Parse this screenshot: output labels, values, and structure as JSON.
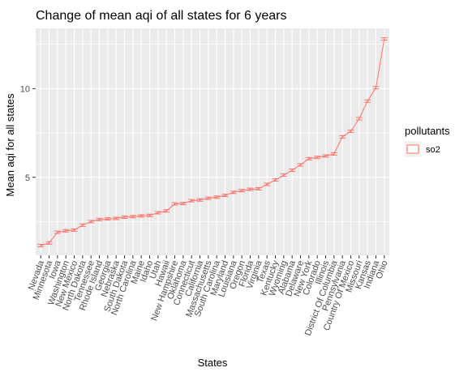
{
  "chart_data": {
    "type": "line",
    "title": "Change of mean aqi of all states for 6 years",
    "xlabel": "States",
    "ylabel": "Mean aqi for all states",
    "ylim": [
      0.6,
      13.4
    ],
    "yticks": [
      5,
      10
    ],
    "grid": true,
    "legend_placement": "right",
    "legend_title": "pollutants",
    "line_color": "#f8766d",
    "panel_color": "#ebebeb",
    "categories": [
      "Nevada",
      "Minnesota",
      "Iowa",
      "Washington",
      "New Mexico",
      "North Dakota",
      "Tennessee",
      "Rhode Island",
      "Georgia",
      "Nebraska",
      "South Dakota",
      "North Carolina",
      "Maine",
      "Idaho",
      "Utah",
      "Hawaii",
      "New Hampshire",
      "Oklahoma",
      "Connecticut",
      "California",
      "Massachusetts",
      "South Carolina",
      "Maryland",
      "Louisiana",
      "Oregon",
      "Florida",
      "Virginia",
      "Texas",
      "Kentucky",
      "Wyoming",
      "Alabama",
      "Delaware",
      "New York",
      "Colorado",
      "Illinois",
      "District Of Columbia",
      "Pennsylvania",
      "Country Of Mexico",
      "Missouri",
      "Kansas",
      "Indiana",
      "Ohio"
    ],
    "series": [
      {
        "name": "so2",
        "values": [
          1.15,
          1.3,
          1.9,
          1.98,
          2.02,
          2.3,
          2.5,
          2.62,
          2.65,
          2.68,
          2.75,
          2.78,
          2.82,
          2.85,
          3.0,
          3.1,
          3.5,
          3.52,
          3.68,
          3.72,
          3.82,
          3.88,
          3.98,
          4.15,
          4.25,
          4.32,
          4.35,
          4.6,
          4.85,
          5.12,
          5.4,
          5.7,
          6.05,
          6.12,
          6.2,
          6.32,
          7.28,
          7.6,
          8.3,
          9.3,
          10.05,
          12.8
        ]
      }
    ]
  }
}
